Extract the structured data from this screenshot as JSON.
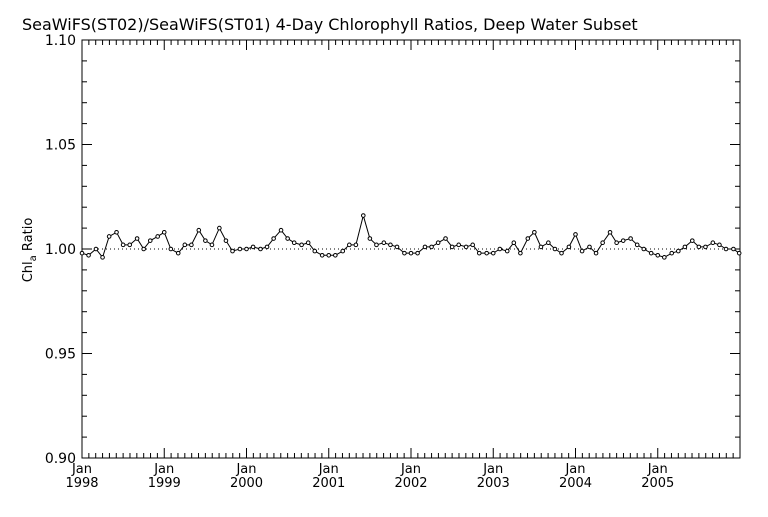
{
  "chart_data": {
    "type": "line",
    "title": "SeaWiFS(ST02)/SeaWiFS(ST01) 4-Day Chlorophyll Ratios, Deep Water Subset",
    "ylabel_main": "Chl",
    "ylabel_sub": "a",
    "ylabel_rest": " Ratio",
    "xlabel": "",
    "xlim": [
      1998.0,
      2006.0
    ],
    "ylim": [
      0.9,
      1.1
    ],
    "reference_line": 1.0,
    "y_ticks": [
      {
        "value": 0.9,
        "label": "0.90"
      },
      {
        "value": 0.95,
        "label": "0.95"
      },
      {
        "value": 1.0,
        "label": "1.00"
      },
      {
        "value": 1.05,
        "label": "1.05"
      },
      {
        "value": 1.1,
        "label": "1.10"
      }
    ],
    "x_ticks": [
      {
        "value": 1998,
        "month": "Jan",
        "year": "1998"
      },
      {
        "value": 1999,
        "month": "Jan",
        "year": "1999"
      },
      {
        "value": 2000,
        "month": "Jan",
        "year": "2000"
      },
      {
        "value": 2001,
        "month": "Jan",
        "year": "2001"
      },
      {
        "value": 2002,
        "month": "Jan",
        "year": "2002"
      },
      {
        "value": 2003,
        "month": "Jan",
        "year": "2003"
      },
      {
        "value": 2004,
        "month": "Jan",
        "year": "2004"
      },
      {
        "value": 2005,
        "month": "Jan",
        "year": "2005"
      }
    ],
    "series": [
      {
        "x": [
          1998.0,
          1998.08,
          1998.17,
          1998.25,
          1998.33,
          1998.42,
          1998.5,
          1998.58,
          1998.67,
          1998.75,
          1998.83,
          1998.92,
          1999.0,
          1999.08,
          1999.17,
          1999.25,
          1999.33,
          1999.42,
          1999.5,
          1999.58,
          1999.67,
          1999.75,
          1999.83,
          1999.92,
          2000.0,
          2000.08,
          2000.17,
          2000.25,
          2000.33,
          2000.42,
          2000.5,
          2000.58,
          2000.67,
          2000.75,
          2000.83,
          2000.92,
          2001.0,
          2001.08,
          2001.17,
          2001.25,
          2001.33,
          2001.42,
          2001.5,
          2001.58,
          2001.67,
          2001.75,
          2001.83,
          2001.92,
          2002.0,
          2002.08,
          2002.17,
          2002.25,
          2002.33,
          2002.42,
          2002.5,
          2002.58,
          2002.67,
          2002.75,
          2002.83,
          2002.92,
          2003.0,
          2003.08,
          2003.17,
          2003.25,
          2003.33,
          2003.42,
          2003.5,
          2003.58,
          2003.67,
          2003.75,
          2003.83,
          2003.92,
          2004.0,
          2004.08,
          2004.17,
          2004.25,
          2004.33,
          2004.42,
          2004.5,
          2004.58,
          2004.67,
          2004.75,
          2004.83,
          2004.92,
          2005.0,
          2005.08,
          2005.17,
          2005.25,
          2005.33,
          2005.42,
          2005.5,
          2005.58,
          2005.67,
          2005.75,
          2005.83,
          2005.92,
          2005.99
        ],
        "values": [
          0.998,
          0.997,
          1.0,
          0.996,
          1.006,
          1.008,
          1.002,
          1.002,
          1.005,
          1.0,
          1.004,
          1.006,
          1.008,
          1.0,
          0.998,
          1.002,
          1.002,
          1.009,
          1.004,
          1.002,
          1.01,
          1.004,
          0.999,
          1.0,
          1.0,
          1.001,
          1.0,
          1.001,
          1.005,
          1.009,
          1.005,
          1.003,
          1.002,
          1.003,
          0.999,
          0.997,
          0.997,
          0.997,
          0.999,
          1.002,
          1.002,
          1.016,
          1.005,
          1.002,
          1.003,
          1.002,
          1.001,
          0.998,
          0.998,
          0.998,
          1.001,
          1.001,
          1.003,
          1.005,
          1.001,
          1.002,
          1.001,
          1.002,
          0.998,
          0.998,
          0.998,
          1.0,
          0.999,
          1.003,
          0.998,
          1.005,
          1.008,
          1.001,
          1.003,
          1.0,
          0.998,
          1.001,
          1.007,
          0.999,
          1.001,
          0.998,
          1.003,
          1.008,
          1.003,
          1.004,
          1.005,
          1.002,
          1.0,
          0.998,
          0.997,
          0.996,
          0.998,
          0.999,
          1.001,
          1.004,
          1.001,
          1.001,
          1.003,
          1.002,
          1.0,
          1.0,
          0.998
        ]
      }
    ],
    "line_color": "#000000",
    "reference_line_style": "dotted",
    "grid": false
  }
}
